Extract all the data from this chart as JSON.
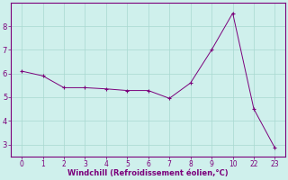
{
  "x_indices": [
    0,
    1,
    2,
    3,
    4,
    5,
    6,
    7,
    8,
    9,
    10,
    11,
    12
  ],
  "x_labels": [
    "0",
    "1",
    "2",
    "3",
    "4",
    "5",
    "6",
    "7",
    "8",
    "9",
    "10",
    "22",
    "23"
  ],
  "y": [
    6.1,
    5.9,
    5.4,
    5.4,
    5.35,
    5.28,
    5.28,
    4.95,
    5.6,
    7.0,
    8.55,
    4.5,
    2.85
  ],
  "line_color": "#7b007b",
  "marker_color": "#7b007b",
  "bg_color": "#cff0ec",
  "grid_color": "#a8d8d0",
  "axis_color": "#7b007b",
  "xlabel": "Windchill (Refroidissement éolien,°C)",
  "xlabel_color": "#7b007b",
  "tick_color": "#7b007b",
  "xlim": [
    -0.5,
    12.5
  ],
  "ylim": [
    2.5,
    9.0
  ],
  "yticks": [
    3,
    4,
    5,
    6,
    7,
    8
  ],
  "xtick_positions": [
    0,
    1,
    2,
    3,
    4,
    5,
    6,
    7,
    8,
    9,
    10,
    11,
    12
  ]
}
